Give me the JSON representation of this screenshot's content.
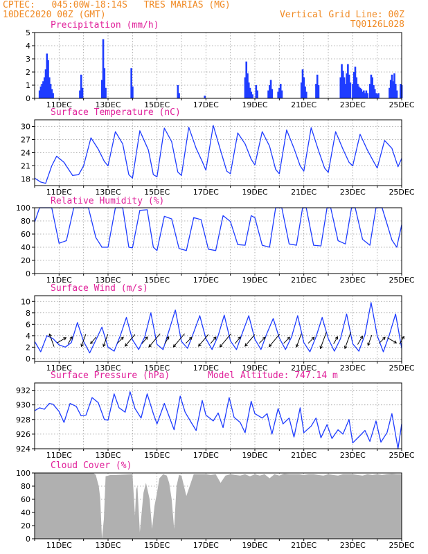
{
  "header": {
    "line1_left": "CPTEC:   045:00W-18:14S   TRES MARIAS (MG)",
    "line2_left": "10DEC2020 00Z (GMT)",
    "line2_right": "Vertical Grid Line: 00Z",
    "line3_right": "TQ0126L028"
  },
  "colors": {
    "header": "#f08a24",
    "panel_title": "#e0209a",
    "series": "#1e3cff",
    "cloud": "#b0b0b0",
    "wind_arrow": "#000000"
  },
  "x_axis": {
    "tick_labels": [
      "11DEC",
      "13DEC",
      "15DEC",
      "17DEC",
      "19DEC",
      "21DEC",
      "23DEC",
      "25DEC"
    ],
    "tick_days": [
      11,
      13,
      15,
      17,
      19,
      21,
      23,
      25
    ],
    "day_range": [
      10,
      25
    ]
  },
  "chart_data": [
    {
      "type": "bar",
      "title": "Precipitation (mm/h)",
      "ylim": [
        0,
        5
      ],
      "yticks": [
        "0",
        "1",
        "2",
        "3",
        "4",
        "5"
      ],
      "x_days": [
        10.2,
        10.25,
        10.3,
        10.35,
        10.4,
        10.45,
        10.5,
        10.55,
        10.6,
        10.65,
        10.7,
        10.75,
        11.85,
        11.9,
        11.95,
        12.75,
        12.8,
        12.85,
        12.9,
        13.95,
        14.0,
        15.85,
        15.9,
        16.95,
        18.6,
        18.65,
        18.7,
        18.75,
        18.8,
        18.85,
        18.9,
        19.05,
        19.1,
        19.55,
        19.6,
        19.65,
        19.7,
        19.95,
        20.0,
        20.05,
        20.1,
        20.9,
        20.95,
        21.0,
        21.05,
        21.1,
        21.5,
        21.55,
        21.6,
        22.5,
        22.55,
        22.6,
        22.65,
        22.7,
        22.75,
        22.8,
        22.85,
        22.9,
        23.0,
        23.05,
        23.1,
        23.15,
        23.2,
        23.25,
        23.3,
        23.35,
        23.4,
        23.45,
        23.5,
        23.55,
        23.6,
        23.7,
        23.75,
        23.8,
        23.85,
        23.9,
        23.95,
        24.0,
        24.05,
        24.5,
        24.55,
        24.6,
        24.65,
        24.7,
        24.75,
        24.8,
        24.95,
        25.0
      ],
      "values": [
        0.6,
        0.9,
        1.1,
        1.3,
        1.6,
        2.2,
        3.4,
        2.9,
        1.6,
        1.1,
        0.7,
        0.4,
        0.6,
        1.8,
        0.8,
        1.4,
        4.5,
        2.3,
        0.8,
        2.3,
        0.9,
        1.0,
        0.4,
        0.2,
        1.6,
        2.8,
        1.9,
        1.2,
        0.8,
        0.5,
        0.3,
        1.0,
        0.6,
        0.6,
        1.0,
        1.4,
        0.7,
        0.5,
        0.8,
        1.1,
        0.6,
        1.2,
        2.2,
        1.6,
        0.9,
        0.5,
        1.1,
        1.8,
        1.0,
        1.6,
        2.6,
        2.1,
        1.6,
        1.1,
        1.9,
        2.6,
        1.8,
        1.2,
        1.1,
        2.0,
        2.4,
        1.6,
        1.1,
        0.9,
        0.8,
        0.7,
        0.5,
        0.6,
        0.4,
        0.6,
        0.4,
        1.1,
        1.8,
        1.6,
        1.0,
        0.7,
        0.4,
        0.3,
        0.4,
        0.8,
        1.4,
        1.8,
        1.3,
        1.9,
        1.1,
        0.6,
        1.1,
        1.0
      ]
    },
    {
      "type": "line",
      "title": "Surface Temperature (nC)",
      "ylim": [
        16.5,
        31.5
      ],
      "yticks": [
        "18",
        "21",
        "24",
        "27",
        "30"
      ],
      "series": [
        {
          "x": [
            10,
            10.25,
            10.45,
            10.7,
            10.9,
            11.2,
            11.55,
            11.8,
            12.0,
            12.3,
            12.6,
            12.85,
            13.0,
            13.3,
            13.6,
            13.85,
            14.0,
            14.3,
            14.65,
            14.85,
            15.0,
            15.3,
            15.6,
            15.85,
            16.0,
            16.3,
            16.6,
            16.85,
            17.0,
            17.3,
            17.6,
            17.85,
            18.0,
            18.3,
            18.6,
            18.85,
            19.0,
            19.3,
            19.6,
            19.85,
            20.0,
            20.3,
            20.6,
            20.85,
            21.0,
            21.3,
            21.6,
            21.85,
            22.0,
            22.3,
            22.6,
            22.85,
            23.0,
            23.3,
            23.6,
            23.85,
            24.0,
            24.3,
            24.6,
            24.85,
            25.0
          ],
          "y": [
            18.2,
            17.3,
            17.0,
            21.0,
            23.2,
            21.8,
            18.8,
            19.0,
            21.0,
            27.4,
            24.8,
            22.0,
            21.0,
            28.8,
            26.0,
            19.0,
            18.2,
            29.0,
            24.6,
            19.0,
            18.5,
            29.6,
            26.5,
            19.6,
            18.8,
            29.8,
            25.0,
            22.0,
            20.0,
            30.2,
            24.5,
            19.8,
            19.2,
            28.5,
            26.0,
            22.5,
            21.2,
            28.8,
            25.5,
            20.2,
            19.2,
            29.2,
            25.0,
            21.0,
            19.8,
            29.7,
            24.5,
            20.5,
            19.5,
            28.8,
            24.8,
            21.8,
            21.0,
            28.2,
            24.6,
            22.0,
            20.5,
            26.8,
            25.0,
            20.8,
            22.7
          ]
        }
      ]
    },
    {
      "type": "line",
      "title": "Relative Humidity (%)",
      "ylim": [
        0,
        100
      ],
      "yticks": [
        "0",
        "20",
        "40",
        "60",
        "80",
        "100"
      ],
      "series": [
        {
          "x": [
            10,
            10.2,
            10.45,
            10.7,
            11.0,
            11.3,
            11.6,
            11.9,
            12.2,
            12.5,
            12.75,
            13.0,
            13.3,
            13.6,
            13.85,
            14.0,
            14.3,
            14.6,
            14.85,
            15.0,
            15.3,
            15.6,
            15.9,
            16.2,
            16.5,
            16.8,
            17.1,
            17.4,
            17.7,
            18.0,
            18.3,
            18.6,
            18.85,
            19.0,
            19.3,
            19.6,
            19.85,
            20.1,
            20.4,
            20.7,
            20.95,
            21.1,
            21.4,
            21.7,
            21.95,
            22.1,
            22.4,
            22.7,
            22.95,
            23.1,
            23.4,
            23.7,
            23.95,
            24.2,
            24.6,
            24.8,
            25.0
          ],
          "y": [
            78,
            100,
            100,
            100,
            46,
            50,
            100,
            100,
            100,
            55,
            40,
            40,
            100,
            100,
            40,
            39,
            96,
            97,
            40,
            35,
            87,
            83,
            38,
            35,
            85,
            82,
            37,
            35,
            88,
            79,
            44,
            43,
            88,
            85,
            43,
            40,
            100,
            100,
            45,
            43,
            100,
            100,
            43,
            42,
            100,
            100,
            50,
            45,
            100,
            100,
            52,
            43,
            100,
            100,
            51,
            40,
            74
          ]
        }
      ]
    },
    {
      "type": "line",
      "title": "Surface Wind (m/s)",
      "ylim": [
        -0.5,
        11
      ],
      "yticks": [
        "0",
        "2",
        "4",
        "6",
        "8",
        "10"
      ],
      "series": [
        {
          "x": [
            10,
            10.25,
            10.5,
            10.75,
            11.0,
            11.25,
            11.5,
            11.75,
            12.0,
            12.25,
            12.5,
            12.75,
            13.0,
            13.25,
            13.5,
            13.75,
            14.0,
            14.25,
            14.5,
            14.75,
            15.0,
            15.25,
            15.5,
            15.75,
            16.0,
            16.25,
            16.5,
            16.75,
            17.0,
            17.25,
            17.5,
            17.75,
            18.0,
            18.25,
            18.5,
            18.75,
            19.0,
            19.25,
            19.5,
            19.75,
            20.0,
            20.25,
            20.5,
            20.75,
            21.0,
            21.25,
            21.5,
            21.75,
            22.0,
            22.25,
            22.5,
            22.75,
            23.0,
            23.25,
            23.5,
            23.75,
            24.0,
            24.25,
            24.5,
            24.75,
            25.0
          ],
          "y": [
            3.0,
            1.2,
            4.0,
            3.5,
            2.4,
            2.0,
            2.8,
            6.3,
            3.0,
            1.0,
            3.2,
            5.5,
            2.0,
            1.3,
            4.0,
            7.2,
            3.3,
            1.6,
            3.8,
            8.0,
            2.5,
            1.6,
            5.0,
            8.5,
            3.0,
            1.8,
            4.6,
            7.5,
            3.5,
            1.6,
            4.0,
            7.6,
            3.1,
            1.6,
            4.6,
            7.5,
            3.4,
            1.6,
            4.5,
            7.0,
            3.6,
            1.6,
            3.8,
            7.5,
            2.8,
            1.2,
            3.8,
            7.2,
            3.5,
            1.3,
            3.5,
            7.8,
            2.6,
            1.3,
            4.2,
            9.8,
            4.0,
            1.2,
            4.2,
            7.8,
            1.8
          ]
        }
      ],
      "wind_arrows": {
        "x": [
          10.7,
          11.1,
          11.45,
          12.0,
          12.4,
          12.9,
          13.5,
          13.9,
          14.5,
          14.9,
          15.4,
          15.9,
          16.3,
          16.9,
          17.3,
          17.8,
          18.3,
          18.8,
          19.3,
          19.8,
          20.3,
          20.8,
          21.3,
          21.8,
          22.3,
          22.8,
          23.3,
          23.7,
          24.2,
          24.6,
          25.0
        ],
        "speed": [
          4.2,
          2.8,
          1.8,
          4.0,
          2.0,
          4.0,
          2.0,
          5.0,
          2.0,
          6.0,
          1.8,
          6.0,
          2.0,
          5.0,
          2.0,
          6.0,
          2.0,
          5.0,
          2.0,
          5.5,
          2.0,
          4.5,
          2.0,
          6.0,
          1.8,
          6.0,
          2.5,
          3.0,
          2.0,
          2.8,
          2.2
        ],
        "dir_deg": [
          340,
          60,
          30,
          200,
          220,
          200,
          45,
          220,
          40,
          220,
          30,
          220,
          45,
          220,
          40,
          220,
          40,
          220,
          45,
          220,
          45,
          200,
          45,
          200,
          30,
          200,
          30,
          200,
          45,
          120,
          30
        ]
      }
    },
    {
      "type": "line",
      "title": "Surface Pressure (hPa)",
      "annotation": "Model Altitude: 747.14 m",
      "ylim": [
        924,
        933
      ],
      "yticks": [
        "924",
        "926",
        "928",
        "930",
        "932"
      ],
      "series": [
        {
          "x": [
            10,
            10.2,
            10.4,
            10.6,
            10.75,
            11.0,
            11.2,
            11.45,
            11.7,
            11.9,
            12.1,
            12.35,
            12.6,
            12.85,
            13.0,
            13.25,
            13.45,
            13.7,
            13.9,
            14.1,
            14.35,
            14.6,
            14.85,
            15.0,
            15.3,
            15.5,
            15.7,
            15.95,
            16.15,
            16.4,
            16.6,
            16.85,
            17.0,
            17.3,
            17.5,
            17.7,
            17.95,
            18.15,
            18.4,
            18.6,
            18.85,
            19.0,
            19.3,
            19.5,
            19.7,
            19.95,
            20.15,
            20.4,
            20.6,
            20.85,
            21.0,
            21.3,
            21.5,
            21.7,
            21.95,
            22.15,
            22.4,
            22.6,
            22.85,
            23.0,
            23.3,
            23.5,
            23.7,
            23.95,
            24.15,
            24.4,
            24.6,
            24.85,
            25.0
          ],
          "y": [
            929.2,
            929.6,
            929.4,
            930.2,
            930.1,
            929.1,
            927.6,
            930.2,
            929.8,
            928.5,
            928.6,
            931.0,
            930.3,
            928.0,
            927.9,
            931.5,
            929.6,
            929.0,
            931.8,
            929.5,
            928.2,
            931.5,
            928.8,
            927.4,
            930.2,
            928.4,
            926.6,
            931.2,
            929.0,
            927.6,
            926.5,
            930.6,
            928.6,
            927.8,
            928.9,
            926.9,
            931.0,
            928.3,
            927.6,
            926.2,
            930.5,
            928.8,
            928.2,
            928.8,
            926.0,
            929.5,
            927.4,
            928.2,
            925.6,
            929.6,
            926.2,
            927.1,
            928.2,
            925.5,
            927.3,
            925.4,
            926.6,
            926.0,
            928.0,
            924.8,
            925.8,
            926.5,
            925.0,
            927.8,
            924.9,
            926.2,
            928.8,
            923.8,
            927.4
          ]
        }
      ]
    },
    {
      "type": "area",
      "title": "Cloud Cover (%)",
      "ylim": [
        0,
        100
      ],
      "yticks": [
        "0",
        "20",
        "40",
        "60",
        "80",
        "100"
      ],
      "series": [
        {
          "x": [
            10,
            12.4,
            12.5,
            12.62,
            12.68,
            12.75,
            12.83,
            12.9,
            13.1,
            13.3,
            14.0,
            14.1,
            14.15,
            14.2,
            14.3,
            14.45,
            14.55,
            14.7,
            14.8,
            14.9,
            15.0,
            15.1,
            15.25,
            15.4,
            15.5,
            15.6,
            15.7,
            15.8,
            15.9,
            16.0,
            16.2,
            16.5,
            16.8,
            17.0,
            17.2,
            17.4,
            17.6,
            17.8,
            18.0,
            18.2,
            18.4,
            18.6,
            18.8,
            19.0,
            19.2,
            19.4,
            19.6,
            19.8,
            20.0,
            20.2,
            20.4,
            20.6,
            20.8,
            21.0,
            21.2,
            21.4,
            21.6,
            21.8,
            22.0,
            22.2,
            22.4,
            22.6,
            22.8,
            23.0,
            23.2,
            23.4,
            23.6,
            23.8,
            24.0,
            24.2,
            24.4,
            24.6,
            24.8,
            25.0
          ],
          "y": [
            100,
            100,
            97,
            80,
            62,
            0,
            30,
            95,
            97,
            97,
            98,
            35,
            75,
            80,
            10,
            70,
            85,
            60,
            15,
            50,
            70,
            92,
            98,
            96,
            85,
            60,
            15,
            80,
            97,
            96,
            65,
            98,
            98,
            98,
            97,
            98,
            85,
            96,
            98,
            97,
            96,
            98,
            95,
            98,
            96,
            98,
            92,
            98,
            96,
            99,
            98,
            98,
            98,
            97,
            98,
            98,
            97,
            96,
            98,
            97,
            96,
            98,
            98,
            98,
            97,
            96,
            98,
            97,
            98,
            97,
            98,
            99,
            98,
            98
          ]
        }
      ]
    }
  ]
}
